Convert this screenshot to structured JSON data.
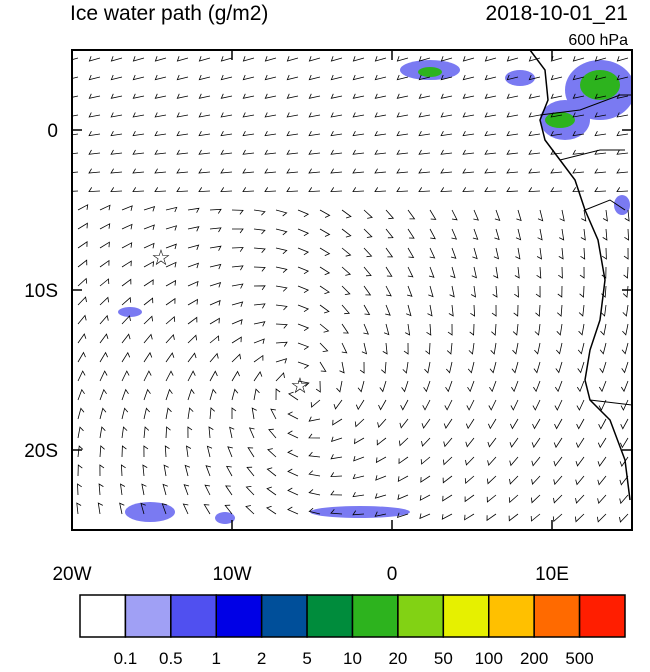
{
  "map": {
    "title": "Ice water path (g/m2)",
    "time": "2018-10-01_21",
    "level": "600 hPa",
    "lon_range": [
      -20,
      15
    ],
    "lat_range": [
      -25,
      5
    ],
    "lon_ticks": [
      {
        "value": -20,
        "label": "20W"
      },
      {
        "value": -10,
        "label": "10W"
      },
      {
        "value": 0,
        "label": "0"
      },
      {
        "value": 10,
        "label": "10E"
      }
    ],
    "lat_ticks": [
      {
        "value": 0,
        "label": "0"
      },
      {
        "value": -10,
        "label": "10S"
      },
      {
        "value": -20,
        "label": "20S"
      }
    ]
  },
  "colorbar": {
    "levels": [
      0.1,
      0.5,
      1,
      2,
      5,
      10,
      20,
      50,
      100,
      200,
      500
    ],
    "colors": [
      "#ffffff",
      "#a0a0f5",
      "#5050f0",
      "#0000e6",
      "#004f9a",
      "#008c3c",
      "#2db31e",
      "#82d214",
      "#e6f000",
      "#ffc000",
      "#ff6a00",
      "#ff1e00"
    ]
  }
}
